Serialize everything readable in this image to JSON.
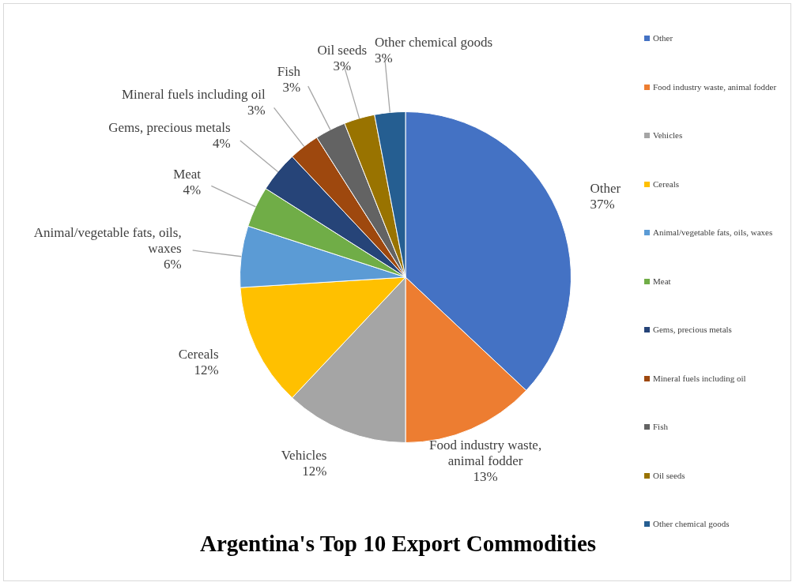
{
  "chart_data": {
    "type": "pie",
    "title": "Argentina's Top 10 Export Commodities",
    "categories": [
      "Other",
      "Food industry waste, animal fodder",
      "Vehicles",
      "Cereals",
      "Animal/vegetable fats, oils, waxes",
      "Meat",
      "Gems, precious metals",
      "Mineral fuels including oil",
      "Fish",
      "Oil seeds",
      "Other chemical goods"
    ],
    "values": [
      37,
      13,
      12,
      12,
      6,
      4,
      4,
      3,
      3,
      3,
      3
    ],
    "value_labels": [
      "37%",
      "13%",
      "12%",
      "12%",
      "6%",
      "4%",
      "4%",
      "3%",
      "3%",
      "3%",
      "3%"
    ],
    "colors": [
      "#4472c4",
      "#ed7d31",
      "#a5a5a5",
      "#ffc000",
      "#5b9bd5",
      "#70ad47",
      "#264478",
      "#9e480e",
      "#636363",
      "#997300",
      "#255e91"
    ],
    "legend": "right"
  }
}
